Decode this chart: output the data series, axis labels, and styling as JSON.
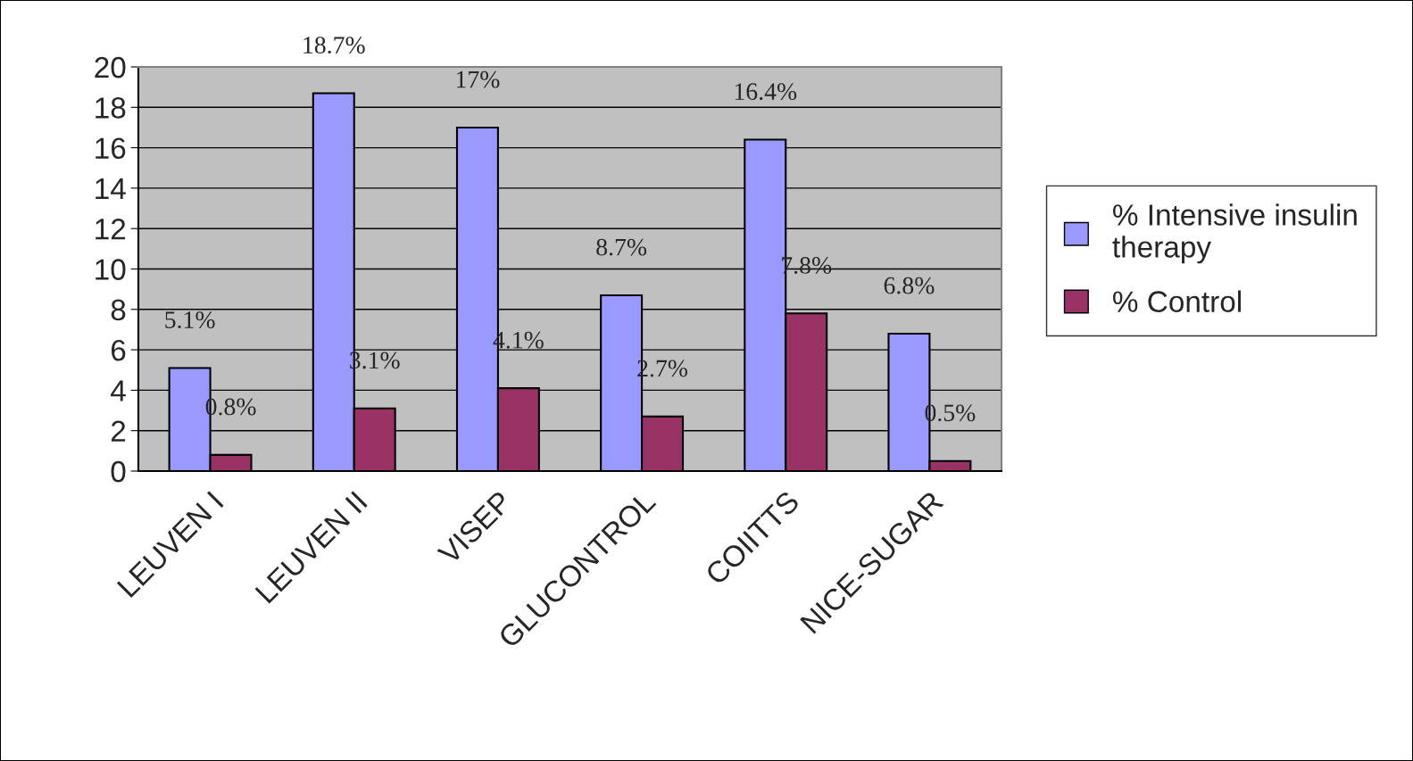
{
  "chart_data": {
    "type": "bar",
    "categories": [
      "LEUVEN I",
      "LEUVEN II",
      "VISEP",
      "GLUCONTROL",
      "COIITTS",
      "NICE-SUGAR"
    ],
    "series": [
      {
        "name": "% Intensive insulin therapy",
        "color": "#9999ff",
        "values": [
          5.1,
          18.7,
          17,
          8.7,
          16.4,
          6.8
        ],
        "value_labels": [
          "5.1%",
          "18.7%",
          "17%",
          "8.7%",
          "16.4%",
          "6.8%"
        ]
      },
      {
        "name": "% Control",
        "color": "#993366",
        "values": [
          0.8,
          3.1,
          4.1,
          2.7,
          7.8,
          0.5
        ],
        "value_labels": [
          "0.8%",
          "3.1%",
          "4.1%",
          "2.7%",
          "7.8%",
          "0.5%"
        ]
      }
    ],
    "ylim": [
      0,
      20
    ],
    "yticks": [
      0,
      2,
      4,
      6,
      8,
      10,
      12,
      14,
      16,
      18,
      20
    ],
    "grid": "y",
    "legend": "right"
  }
}
